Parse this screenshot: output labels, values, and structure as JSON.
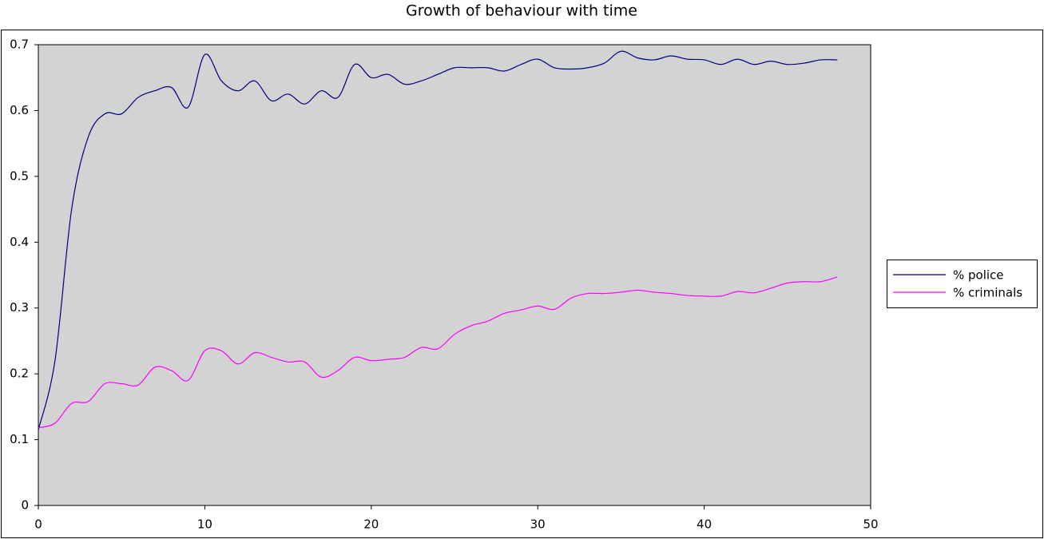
{
  "chart_data": {
    "type": "line",
    "title": "Growth of behaviour with time",
    "x": [
      0,
      1,
      2,
      3,
      4,
      5,
      6,
      7,
      8,
      9,
      10,
      11,
      12,
      13,
      14,
      15,
      16,
      17,
      18,
      19,
      20,
      21,
      22,
      23,
      24,
      25,
      26,
      27,
      28,
      29,
      30,
      31,
      32,
      33,
      34,
      35,
      36,
      37,
      38,
      39,
      40,
      41,
      42,
      43,
      44,
      45,
      46,
      47,
      48
    ],
    "series": [
      {
        "name": "% police",
        "color": "#000080",
        "values": [
          0.115,
          0.22,
          0.45,
          0.56,
          0.595,
          0.595,
          0.62,
          0.63,
          0.635,
          0.605,
          0.685,
          0.645,
          0.63,
          0.645,
          0.615,
          0.625,
          0.61,
          0.63,
          0.62,
          0.67,
          0.65,
          0.655,
          0.64,
          0.645,
          0.655,
          0.665,
          0.665,
          0.665,
          0.66,
          0.67,
          0.678,
          0.665,
          0.663,
          0.665,
          0.672,
          0.69,
          0.68,
          0.677,
          0.683,
          0.678,
          0.677,
          0.67,
          0.678,
          0.67,
          0.675,
          0.67,
          0.672,
          0.677,
          0.677
        ]
      },
      {
        "name": "% criminals",
        "color": "#ff00ff",
        "values": [
          0.118,
          0.125,
          0.155,
          0.158,
          0.185,
          0.185,
          0.183,
          0.21,
          0.205,
          0.19,
          0.235,
          0.235,
          0.215,
          0.232,
          0.225,
          0.218,
          0.218,
          0.195,
          0.205,
          0.225,
          0.22,
          0.222,
          0.225,
          0.24,
          0.238,
          0.26,
          0.273,
          0.28,
          0.292,
          0.297,
          0.303,
          0.298,
          0.315,
          0.322,
          0.322,
          0.324,
          0.327,
          0.324,
          0.322,
          0.319,
          0.318,
          0.318,
          0.325,
          0.323,
          0.33,
          0.338,
          0.34,
          0.34,
          0.347
        ]
      }
    ],
    "xlim": [
      0,
      50
    ],
    "xticks": [
      0,
      10,
      20,
      30,
      40,
      50
    ],
    "ylim": [
      0,
      0.7
    ],
    "yticks": [
      0,
      0.1,
      0.2,
      0.3,
      0.4,
      0.5,
      0.6,
      0.7
    ],
    "legend": "right",
    "plot_background": "#d3d3d3"
  }
}
